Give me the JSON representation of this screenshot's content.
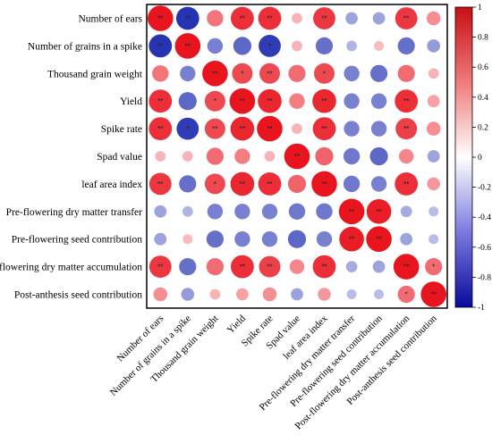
{
  "chart_data": {
    "type": "heatmap",
    "subtype": "correlation-circle-matrix",
    "variables": [
      "Number of ears",
      "Number of grains in a spike",
      "Thousand grain weight",
      "Yield",
      "Spike rate",
      "Spad value",
      "leaf area index",
      "Pre-flowering dry matter transfer",
      "Pre-flowering seed contribution",
      "Post-flowering dry matter accumulation",
      "Post-anthesis seed contribution"
    ],
    "matrix": [
      [
        1.0,
        -0.85,
        0.45,
        0.85,
        0.85,
        0.1,
        0.8,
        -0.2,
        -0.2,
        0.8,
        0.3
      ],
      [
        -0.85,
        1.0,
        -0.4,
        -0.55,
        -0.8,
        0.1,
        -0.5,
        -0.1,
        0.05,
        -0.5,
        -0.25
      ],
      [
        0.45,
        -0.4,
        1.0,
        0.7,
        0.7,
        0.5,
        0.7,
        -0.4,
        -0.5,
        0.5,
        0.1
      ],
      [
        0.85,
        -0.55,
        0.7,
        1.0,
        0.9,
        0.4,
        0.9,
        -0.4,
        -0.4,
        0.85,
        0.2
      ],
      [
        0.85,
        -0.8,
        0.7,
        0.9,
        1.0,
        0.1,
        0.85,
        -0.4,
        -0.4,
        0.75,
        0.3
      ],
      [
        0.1,
        0.1,
        0.5,
        0.4,
        0.1,
        1.0,
        0.55,
        -0.45,
        -0.55,
        0.35,
        -0.2
      ],
      [
        0.8,
        -0.5,
        0.7,
        0.9,
        0.85,
        0.55,
        1.0,
        -0.45,
        -0.4,
        0.85,
        0.25
      ],
      [
        -0.2,
        -0.1,
        -0.4,
        -0.4,
        -0.4,
        -0.45,
        -0.45,
        1.0,
        0.95,
        -0.15,
        -0.05
      ],
      [
        -0.2,
        0.05,
        -0.5,
        -0.4,
        -0.4,
        -0.55,
        -0.4,
        0.95,
        1.0,
        -0.2,
        -0.05
      ],
      [
        0.8,
        -0.5,
        0.5,
        0.85,
        0.75,
        0.35,
        0.85,
        -0.15,
        -0.2,
        1.0,
        0.5
      ],
      [
        0.3,
        -0.25,
        0.1,
        0.2,
        0.3,
        -0.2,
        0.25,
        -0.05,
        -0.05,
        0.5,
        1.0
      ]
    ],
    "significance": [
      [
        "**",
        "**",
        "",
        "**",
        "**",
        "",
        "**",
        "",
        "",
        "**",
        ""
      ],
      [
        "**",
        "**",
        "",
        "",
        "*",
        "",
        "",
        "",
        "",
        "",
        ""
      ],
      [
        "",
        "",
        "**",
        "*",
        "**",
        "",
        "*",
        "",
        "",
        "",
        ""
      ],
      [
        "**",
        "",
        "*",
        "**",
        "**",
        "",
        "**",
        "",
        "",
        "**",
        ""
      ],
      [
        "**",
        "*",
        "**",
        "**",
        "**",
        "",
        "**",
        "",
        "",
        "**",
        ""
      ],
      [
        "",
        "",
        "",
        "",
        "",
        "**",
        "",
        "",
        "",
        "",
        ""
      ],
      [
        "**",
        "",
        "*",
        "**",
        "**",
        "",
        "**",
        "",
        "",
        "**",
        ""
      ],
      [
        "",
        "",
        "",
        "",
        "",
        "",
        "",
        "**",
        "**",
        "",
        ""
      ],
      [
        "",
        "",
        "",
        "",
        "",
        "",
        "",
        "**",
        "**",
        "",
        ""
      ],
      [
        "**",
        "",
        "",
        "**",
        "**",
        "",
        "**",
        "",
        "",
        "**",
        "*"
      ],
      [
        "",
        "",
        "",
        "",
        "",
        "",
        "",
        "",
        "",
        "*",
        "**"
      ]
    ],
    "colorbar": {
      "range": [
        -1,
        1
      ],
      "ticks": [
        1,
        0.8,
        0.6,
        0.4,
        0.2,
        0,
        -0.2,
        -0.4,
        -0.6,
        -0.8,
        -1
      ],
      "tick_labels": [
        "1",
        "0.8",
        "0.6",
        "0.4",
        "0.2",
        "0",
        "-0.2",
        "-0.4",
        "-0.6",
        "-0.8",
        "-1"
      ],
      "colors": {
        "negative": "#0a1aa8",
        "zero": "#ffffff",
        "positive": "#e8141e"
      },
      "placement": "right"
    },
    "title": "",
    "xlabel": "",
    "ylabel": "",
    "grid": false,
    "legend": "none"
  }
}
